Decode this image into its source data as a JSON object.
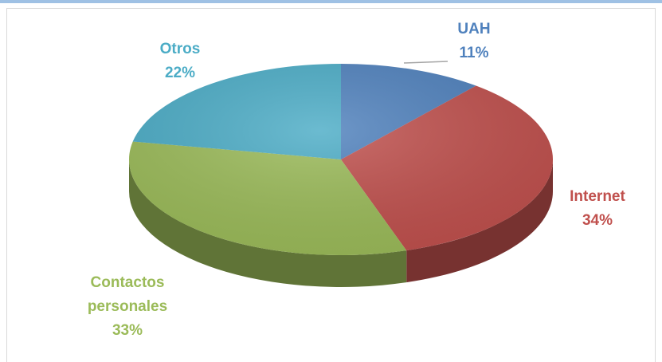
{
  "chart_data": {
    "type": "pie",
    "categories": [
      "UAH",
      "Internet",
      "Contactos personales",
      "Otros"
    ],
    "values": [
      11,
      34,
      33,
      22
    ],
    "value_labels": [
      "11%",
      "34%",
      "33%",
      "22%"
    ],
    "colors": [
      "#4f81bd",
      "#c0504d",
      "#9bbb59",
      "#4bacc6"
    ]
  }
}
